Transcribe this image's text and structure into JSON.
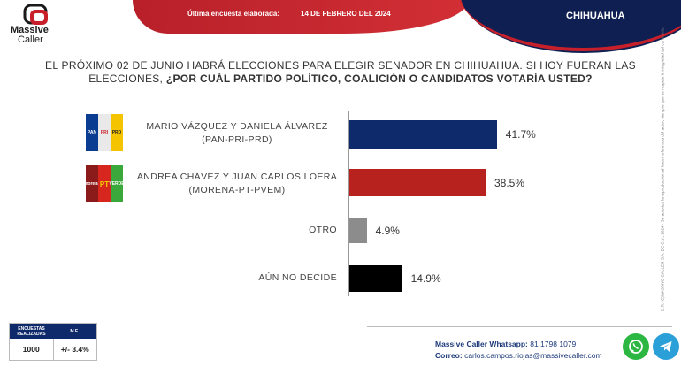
{
  "brand": {
    "name_line1": "Massive",
    "name_line2": "Caller"
  },
  "header": {
    "survey_label": "Última encuesta elaborada:",
    "survey_date": "14 DE FEBRERO DEL 2024",
    "state": "CHIHUAHUA"
  },
  "question": {
    "line1": "EL PRÓXIMO 02 DE JUNIO HABRÁ ELECCIONES PARA ELEGIR SENADOR EN CHIHUAHUA. SI HOY FUERAN LAS",
    "line2_plain": "ELECCIONES, ",
    "line2_bold": "¿POR CUÁL PARTIDO POLÍTICO, COALICIÓN O CANDIDATOS VOTARÍA USTED?"
  },
  "legal": "D.R. (C)MASSIVE CALLER S.A. DE C.V., 2024 · Se autoriza la reproducción al hacer referencia del autor, siempre que se respete la integridad del contenido.",
  "colors": {
    "navy": "#0f2a6b",
    "red": "#b7221e",
    "gray": "#8c8c8c",
    "black": "#000000"
  },
  "chart_data": {
    "type": "bar",
    "orientation": "horizontal",
    "categories": [
      "MARIO VÁZQUEZ Y DANIELA ÁLVAREZ (PAN-PRI-PRD)",
      "ANDREA CHÁVEZ Y JUAN CARLOS LOERA (MORENA-PT-PVEM)",
      "OTRO",
      "AÚN NO DECIDE"
    ],
    "values": [
      41.7,
      38.5,
      4.9,
      14.9
    ],
    "value_labels": [
      "41.7%",
      "38.5%",
      "4.9%",
      "14.9%"
    ],
    "bar_colors": [
      "#0f2a6b",
      "#b7221e",
      "#8c8c8c",
      "#000000"
    ],
    "xlim": [
      0,
      100
    ],
    "grid": false,
    "legend": "none"
  },
  "candidates": [
    {
      "line1": "MARIO VÁZQUEZ Y DANIELA ÁLVAREZ",
      "line2": "(PAN-PRI-PRD)",
      "logos": [
        "PAN",
        "PRI",
        "PRD"
      ]
    },
    {
      "line1": "ANDREA CHÁVEZ Y JUAN CARLOS LOERA",
      "line2": "(MORENA-PT-PVEM)",
      "logos": [
        "morena",
        "PT",
        "VERDE"
      ]
    },
    {
      "line1": "OTRO"
    },
    {
      "line1": "AÚN NO DECIDE"
    }
  ],
  "stats_table": {
    "col1_header": "ENCUESTAS REALIZADAS",
    "col2_header": "M.E.",
    "col1_value": "1000",
    "col2_value": "+/- 3.4%"
  },
  "contact": {
    "whatsapp_label": "Massive Caller Whatsapp:",
    "whatsapp_number": "81 1798 1079",
    "email_label": "Correo:",
    "email": "carlos.campos.riojas@massivecaller.com"
  }
}
